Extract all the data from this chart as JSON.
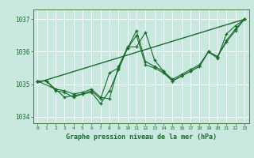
{
  "title": "Graphe pression niveau de la mer (hPa)",
  "bg_color": "#c8e8e0",
  "grid_color": "#ffffff",
  "line_color": "#1a6b2a",
  "xlim": [
    -0.5,
    23.5
  ],
  "ylim": [
    1033.8,
    1037.3
  ],
  "yticks": [
    1034,
    1035,
    1036,
    1037
  ],
  "xticks": [
    0,
    1,
    2,
    3,
    4,
    5,
    6,
    7,
    8,
    9,
    10,
    11,
    12,
    13,
    14,
    15,
    16,
    17,
    18,
    19,
    20,
    21,
    22,
    23
  ],
  "series1": {
    "x": [
      0,
      1,
      2,
      3,
      4,
      5,
      6,
      7,
      8,
      9,
      10,
      11,
      12,
      13,
      14,
      15,
      16,
      17,
      18,
      19,
      20,
      21,
      22,
      23
    ],
    "y": [
      1035.1,
      1035.1,
      1034.8,
      1034.75,
      1034.6,
      1034.7,
      1034.8,
      1034.55,
      1035.35,
      1035.5,
      1036.15,
      1036.15,
      1036.6,
      1035.75,
      1035.4,
      1035.1,
      1035.25,
      1035.4,
      1035.55,
      1036.0,
      1035.8,
      1036.55,
      1036.8,
      1037.0
    ]
  },
  "series2": {
    "x": [
      0,
      1,
      2,
      3,
      4,
      5,
      6,
      7,
      8,
      9,
      10,
      11,
      12,
      13,
      14,
      15,
      16,
      17,
      18,
      19,
      20,
      21,
      22,
      23
    ],
    "y": [
      1035.1,
      1035.1,
      1034.85,
      1034.8,
      1034.7,
      1034.75,
      1034.85,
      1034.6,
      1034.55,
      1035.55,
      1036.1,
      1036.65,
      1035.7,
      1035.55,
      1035.4,
      1035.15,
      1035.3,
      1035.45,
      1035.6,
      1036.0,
      1035.85,
      1036.35,
      1036.7,
      1037.0
    ]
  },
  "series3": {
    "x": [
      0,
      2,
      3,
      4,
      5,
      6,
      7,
      8,
      9,
      10,
      11,
      12,
      13,
      14,
      15,
      16,
      17,
      18,
      19,
      20,
      21,
      22,
      23
    ],
    "y": [
      1035.1,
      1034.85,
      1034.6,
      1034.65,
      1034.7,
      1034.75,
      1034.4,
      1034.8,
      1035.45,
      1036.1,
      1036.5,
      1035.6,
      1035.5,
      1035.35,
      1035.1,
      1035.25,
      1035.4,
      1035.55,
      1036.0,
      1035.85,
      1036.3,
      1036.65,
      1037.0
    ]
  },
  "trend": {
    "x": [
      0,
      23
    ],
    "y": [
      1035.05,
      1037.0
    ]
  },
  "ytick_labels": [
    "1034",
    "1035",
    "1036",
    "1037"
  ],
  "title_fontsize": 6.0,
  "ytick_fontsize": 5.5,
  "xtick_fontsize": 4.5
}
